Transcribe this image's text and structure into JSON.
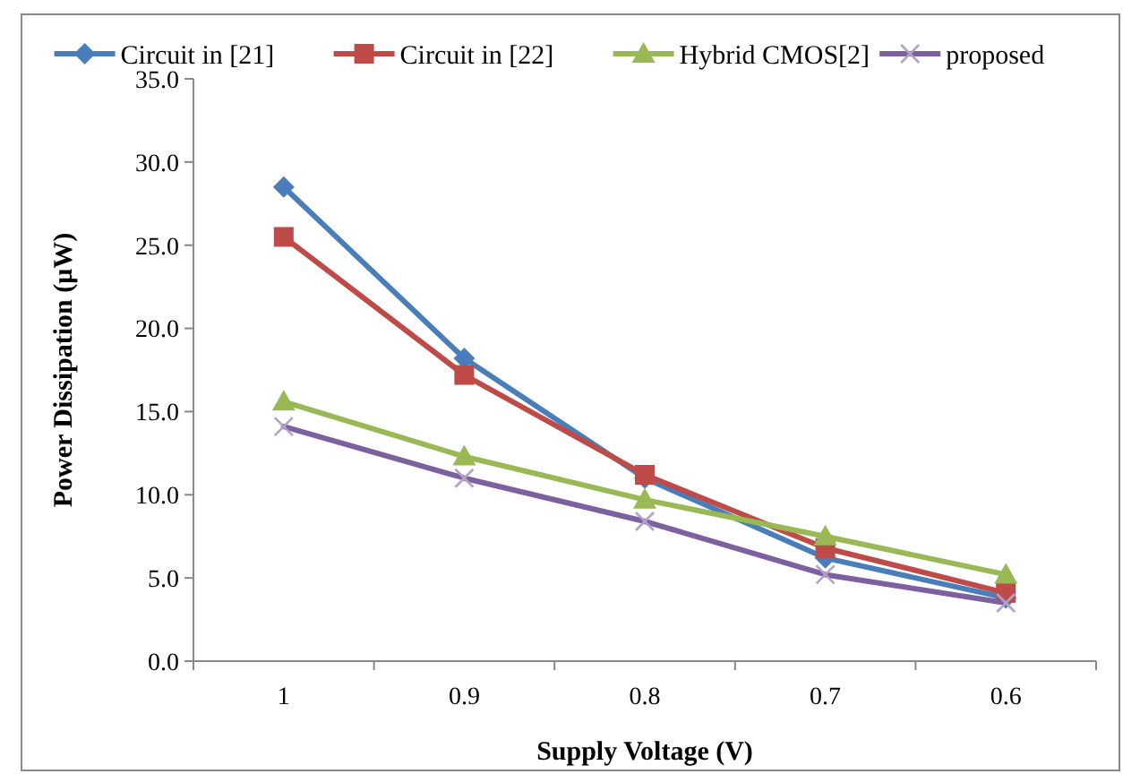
{
  "chart_data": {
    "type": "line",
    "xlabel": "Supply Voltage (V)",
    "ylabel": "Power Dissipation (μW)",
    "categories": [
      "1",
      "0.9",
      "0.8",
      "0.7",
      "0.6"
    ],
    "series": [
      {
        "name": "Circuit in [21]",
        "color": "#4a7ebb",
        "marker": "diamond",
        "values": [
          28.5,
          18.2,
          11.0,
          6.2,
          3.8
        ]
      },
      {
        "name": "Circuit in [22]",
        "color": "#be4b48",
        "marker": "square",
        "values": [
          25.5,
          17.2,
          11.2,
          6.8,
          4.1
        ]
      },
      {
        "name": "Hybrid CMOS[2]",
        "color": "#98b954",
        "marker": "triangle",
        "values": [
          15.6,
          12.3,
          9.7,
          7.5,
          5.2
        ]
      },
      {
        "name": "proposed",
        "color": "#7d60a0",
        "marker": "cross",
        "values": [
          14.1,
          11.0,
          8.4,
          5.2,
          3.5
        ]
      }
    ],
    "ylim": [
      0,
      35
    ],
    "yticks": [
      {
        "value": 0,
        "label": "0.0"
      },
      {
        "value": 5,
        "label": "5.0"
      },
      {
        "value": 10,
        "label": "10.0"
      },
      {
        "value": 15,
        "label": "15.0"
      },
      {
        "value": 20,
        "label": "20.0"
      },
      {
        "value": 25,
        "label": "25.0"
      },
      {
        "value": 30,
        "label": "30.0"
      },
      {
        "value": 35,
        "label": "35.0"
      }
    ],
    "grid": false,
    "legend": "top",
    "line_style": "solid"
  }
}
